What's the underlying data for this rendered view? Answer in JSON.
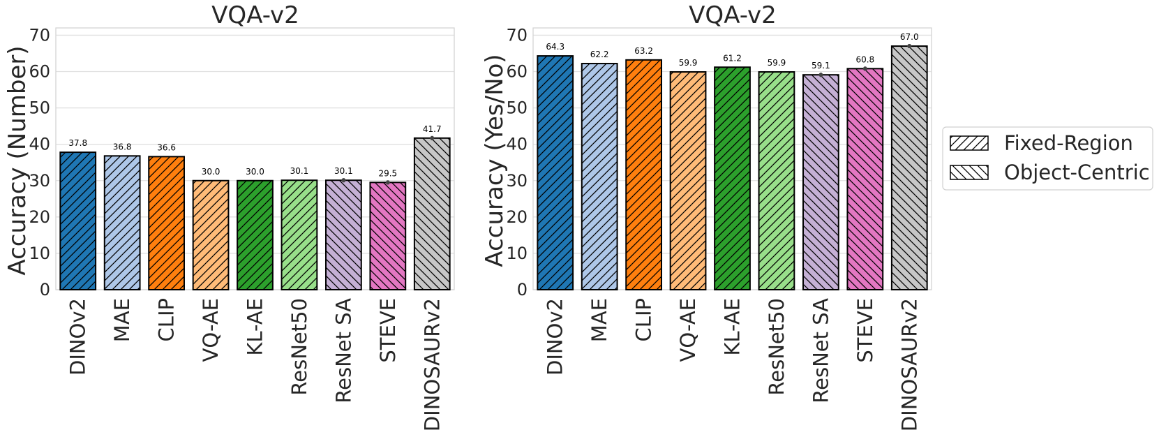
{
  "chart_data": [
    {
      "type": "bar",
      "title": "VQA-v2",
      "ylabel": "Accuracy (Number)",
      "ylim": [
        0,
        72
      ],
      "yticks": [
        0,
        10,
        20,
        30,
        40,
        50,
        60,
        70
      ],
      "grid": true,
      "categories": [
        "DINOv2",
        "MAE",
        "CLIP",
        "VQ-AE",
        "KL-AE",
        "ResNet50",
        "ResNet SA",
        "STEVE",
        "DINOSAURv2"
      ],
      "values": [
        37.8,
        36.8,
        36.6,
        30.0,
        30.0,
        30.1,
        30.1,
        29.5,
        41.7
      ],
      "value_labels": [
        "37.8",
        "36.8",
        "36.6",
        "30.0",
        "30.0",
        "30.1",
        "30.1",
        "29.5",
        "41.7"
      ],
      "groups": [
        "Fixed-Region",
        "Fixed-Region",
        "Fixed-Region",
        "Fixed-Region",
        "Fixed-Region",
        "Fixed-Region",
        "Object-Centric",
        "Object-Centric",
        "Object-Centric"
      ],
      "colors": [
        "#1f77b4",
        "#aec7e8",
        "#ff7f0e",
        "#ffbb78",
        "#2ca02c",
        "#98df8a",
        "#c5b0d5",
        "#e377c2",
        "#c7c7c7"
      ]
    },
    {
      "type": "bar",
      "title": "VQA-v2",
      "ylabel": "Accuracy (Yes/No)",
      "ylim": [
        0,
        72
      ],
      "yticks": [
        0,
        10,
        20,
        30,
        40,
        50,
        60,
        70
      ],
      "grid": true,
      "categories": [
        "DINOv2",
        "MAE",
        "CLIP",
        "VQ-AE",
        "KL-AE",
        "ResNet50",
        "ResNet SA",
        "STEVE",
        "DINOSAURv2"
      ],
      "values": [
        64.3,
        62.2,
        63.2,
        59.9,
        61.2,
        59.9,
        59.1,
        60.8,
        67.0
      ],
      "value_labels": [
        "64.3",
        "62.2",
        "63.2",
        "59.9",
        "61.2",
        "59.9",
        "59.1",
        "60.8",
        "67.0"
      ],
      "groups": [
        "Fixed-Region",
        "Fixed-Region",
        "Fixed-Region",
        "Fixed-Region",
        "Fixed-Region",
        "Fixed-Region",
        "Object-Centric",
        "Object-Centric",
        "Object-Centric"
      ],
      "colors": [
        "#1f77b4",
        "#aec7e8",
        "#ff7f0e",
        "#ffbb78",
        "#2ca02c",
        "#98df8a",
        "#c5b0d5",
        "#e377c2",
        "#c7c7c7"
      ]
    }
  ],
  "legend": {
    "placement": "right",
    "items": [
      {
        "label": "Fixed-Region",
        "hatch": "forward-diagonal"
      },
      {
        "label": "Object-Centric",
        "hatch": "backward-diagonal"
      }
    ]
  }
}
